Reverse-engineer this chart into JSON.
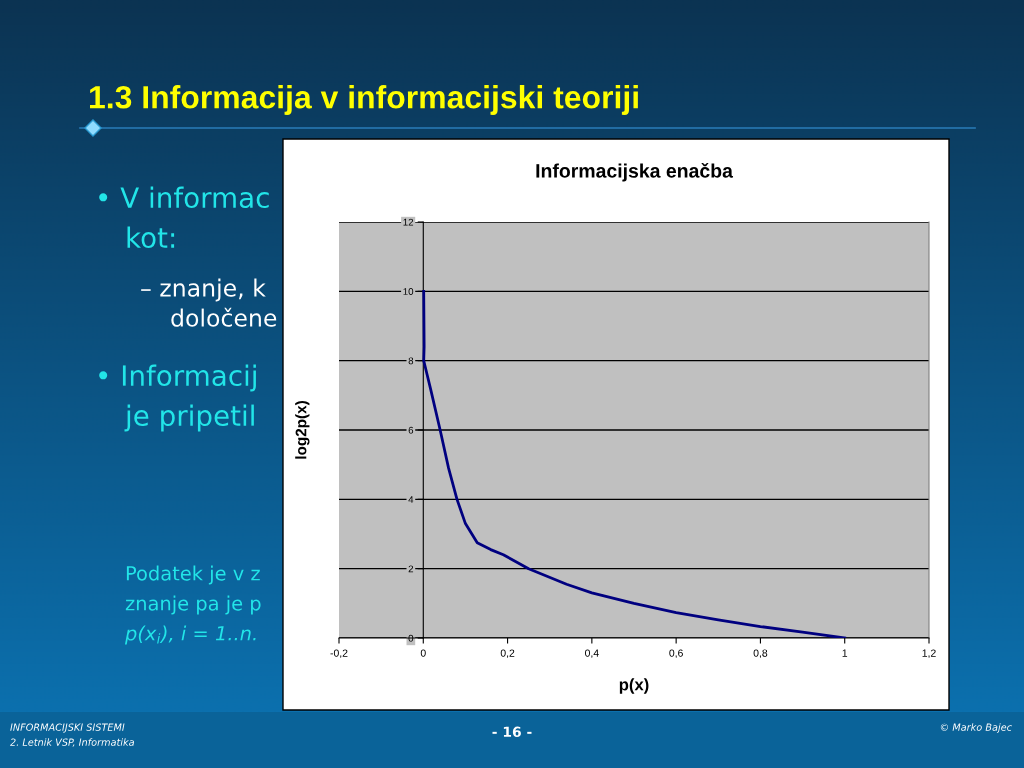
{
  "chart_data": {
    "type": "line",
    "title": "Informacijska enačba",
    "xlabel": "p(x)",
    "ylabel": "log2p(x)",
    "x": [
      0.001,
      0.002,
      0.001,
      0.009,
      0.017,
      0.04,
      0.06,
      0.08,
      0.1,
      0.128,
      0.16,
      0.19,
      0.25,
      0.34,
      0.4,
      0.5,
      0.6,
      0.7,
      0.8,
      0.9,
      1.0
    ],
    "series": [
      {
        "color": "#000080",
        "values": [
          10.0,
          8.4,
          8.0,
          7.6,
          7.2,
          6.0,
          4.9,
          4.0,
          3.3,
          2.75,
          2.55,
          2.4,
          2.0,
          1.55,
          1.3,
          1.0,
          0.73,
          0.52,
          0.33,
          0.17,
          0.0
        ]
      }
    ],
    "xlim": [
      -0.2,
      1.2
    ],
    "xticks": [
      {
        "value": -0.2,
        "label": "-0,2"
      },
      0,
      {
        "value": 0.2,
        "label": "0,2"
      },
      {
        "value": 0.4,
        "label": "0,4"
      },
      {
        "value": 0.6,
        "label": "0,6"
      },
      {
        "value": 0.8,
        "label": "0,8"
      },
      1,
      {
        "value": 1.2,
        "label": "1,2"
      }
    ],
    "ylim": [
      0,
      12
    ],
    "yticks": [
      0,
      2,
      4,
      6,
      8,
      10,
      12
    ],
    "grid": "y",
    "line_style": "solid",
    "annotations": [
      "1.3 Informacija v informacijski teoriji",
      "• V informac",
      "kot:",
      "– znanje, k",
      "določene",
      "• Informacij",
      "je pripetil",
      "Podatek je v z",
      "znanje pa je p",
      "p(x$_{i}$), i = 1..n.",
      "INFORMACIJSKI SISTEMI",
      "2. Letnik VSP, Informatika",
      "- 16 -",
      "© Marko Bajec"
    ]
  }
}
